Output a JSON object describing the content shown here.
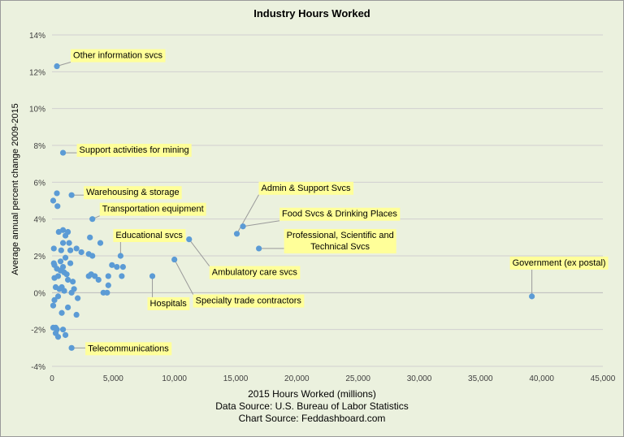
{
  "chart_data": {
    "type": "scatter",
    "title": "Industry Hours Worked",
    "xlabel": "2015 Hours Worked (millions)",
    "ylabel": "Average annual percent change 2009-2015",
    "xlim": [
      0,
      45000
    ],
    "ylim": [
      -4,
      14
    ],
    "x_ticks": [
      0,
      5000,
      10000,
      15000,
      20000,
      25000,
      30000,
      35000,
      40000,
      45000
    ],
    "x_tick_labels": [
      "0",
      "5,000",
      "10,000",
      "15,000",
      "20,000",
      "25,000",
      "30,000",
      "35,000",
      "40,000",
      "45,000"
    ],
    "y_ticks": [
      -4,
      -2,
      0,
      2,
      4,
      6,
      8,
      10,
      12,
      14
    ],
    "y_tick_labels": [
      "-4%",
      "-2%",
      "0%",
      "2%",
      "4%",
      "6%",
      "8%",
      "10%",
      "12%",
      "14%"
    ],
    "grid": true,
    "colors": {
      "point": "#5b9bd5",
      "label_bg": "#ffff99",
      "background": "#ebf1de",
      "leader": "#9a9a9a"
    },
    "points": [
      {
        "x": 400,
        "y": 12.3,
        "label": "Other information svcs"
      },
      {
        "x": 900,
        "y": 7.6,
        "label": "Support activities for mining"
      },
      {
        "x": 1600,
        "y": 5.3,
        "label": "Warehousing & storage"
      },
      {
        "x": 3300,
        "y": 4.0,
        "label": "Transportation equipment"
      },
      {
        "x": 5600,
        "y": 2.0,
        "label": "Educational svcs"
      },
      {
        "x": 15100,
        "y": 3.2,
        "label": "Admin & Support Svcs"
      },
      {
        "x": 15600,
        "y": 3.6,
        "label": "Food Svcs & Drinking Places"
      },
      {
        "x": 16900,
        "y": 2.4,
        "label": "Professional, Scientific and Technical Svcs"
      },
      {
        "x": 11200,
        "y": 2.9,
        "label": "Ambulatory care svcs"
      },
      {
        "x": 10000,
        "y": 1.8,
        "label": "Specialty trade contractors"
      },
      {
        "x": 8200,
        "y": 0.9,
        "label": "Hospitals"
      },
      {
        "x": 39200,
        "y": -0.2,
        "label": "Government (ex postal)"
      },
      {
        "x": 1600,
        "y": -3.0,
        "label": "Telecommunications"
      },
      {
        "x": 100,
        "y": 5.0
      },
      {
        "x": 400,
        "y": 5.4
      },
      {
        "x": 450,
        "y": 4.7
      },
      {
        "x": 900,
        "y": 3.4
      },
      {
        "x": 1300,
        "y": 3.3
      },
      {
        "x": 550,
        "y": 3.3
      },
      {
        "x": 1100,
        "y": 3.1
      },
      {
        "x": 900,
        "y": 2.7
      },
      {
        "x": 1400,
        "y": 2.7
      },
      {
        "x": 3950,
        "y": 2.7
      },
      {
        "x": 3100,
        "y": 3.0
      },
      {
        "x": 750,
        "y": 2.3
      },
      {
        "x": 1500,
        "y": 2.3
      },
      {
        "x": 2000,
        "y": 2.4
      },
      {
        "x": 2400,
        "y": 2.2
      },
      {
        "x": 3000,
        "y": 2.1
      },
      {
        "x": 3300,
        "y": 2.0
      },
      {
        "x": 150,
        "y": 2.4
      },
      {
        "x": 1100,
        "y": 1.9
      },
      {
        "x": 700,
        "y": 1.7
      },
      {
        "x": 1500,
        "y": 1.6
      },
      {
        "x": 150,
        "y": 1.6
      },
      {
        "x": 200,
        "y": 1.5
      },
      {
        "x": 400,
        "y": 1.3
      },
      {
        "x": 900,
        "y": 1.4
      },
      {
        "x": 700,
        "y": 1.2
      },
      {
        "x": 1000,
        "y": 1.1
      },
      {
        "x": 1200,
        "y": 1.0
      },
      {
        "x": 3000,
        "y": 0.9
      },
      {
        "x": 3200,
        "y": 1.0
      },
      {
        "x": 3500,
        "y": 0.9
      },
      {
        "x": 4900,
        "y": 1.5
      },
      {
        "x": 5300,
        "y": 1.4
      },
      {
        "x": 5800,
        "y": 1.4
      },
      {
        "x": 5700,
        "y": 0.9
      },
      {
        "x": 4600,
        "y": 0.9
      },
      {
        "x": 3800,
        "y": 0.7
      },
      {
        "x": 1300,
        "y": 0.7
      },
      {
        "x": 1700,
        "y": 0.6
      },
      {
        "x": 200,
        "y": 0.8
      },
      {
        "x": 500,
        "y": 0.9
      },
      {
        "x": 1800,
        "y": 0.2
      },
      {
        "x": 300,
        "y": 0.3
      },
      {
        "x": 800,
        "y": 0.3
      },
      {
        "x": 1000,
        "y": 0.1
      },
      {
        "x": 600,
        "y": 0.2
      },
      {
        "x": 1600,
        "y": 0.0
      },
      {
        "x": 4200,
        "y": 0.0
      },
      {
        "x": 4500,
        "y": 0.0
      },
      {
        "x": 4600,
        "y": 0.4
      },
      {
        "x": 2100,
        "y": -0.3
      },
      {
        "x": 200,
        "y": -0.4
      },
      {
        "x": 500,
        "y": -0.2
      },
      {
        "x": 100,
        "y": -0.7
      },
      {
        "x": 1300,
        "y": -0.8
      },
      {
        "x": 800,
        "y": -1.1
      },
      {
        "x": 2000,
        "y": -1.2
      },
      {
        "x": 100,
        "y": -1.9
      },
      {
        "x": 300,
        "y": -1.9
      },
      {
        "x": 400,
        "y": -2.0
      },
      {
        "x": 900,
        "y": -2.0
      },
      {
        "x": 300,
        "y": -2.2
      },
      {
        "x": 500,
        "y": -2.4
      },
      {
        "x": 1100,
        "y": -2.3
      }
    ]
  },
  "footer": {
    "xlabel": "2015 Hours Worked (millions)",
    "source": "Data Source: U.S. Bureau of Labor Statistics",
    "chart_source": "Chart Source: Feddashboard.com"
  }
}
